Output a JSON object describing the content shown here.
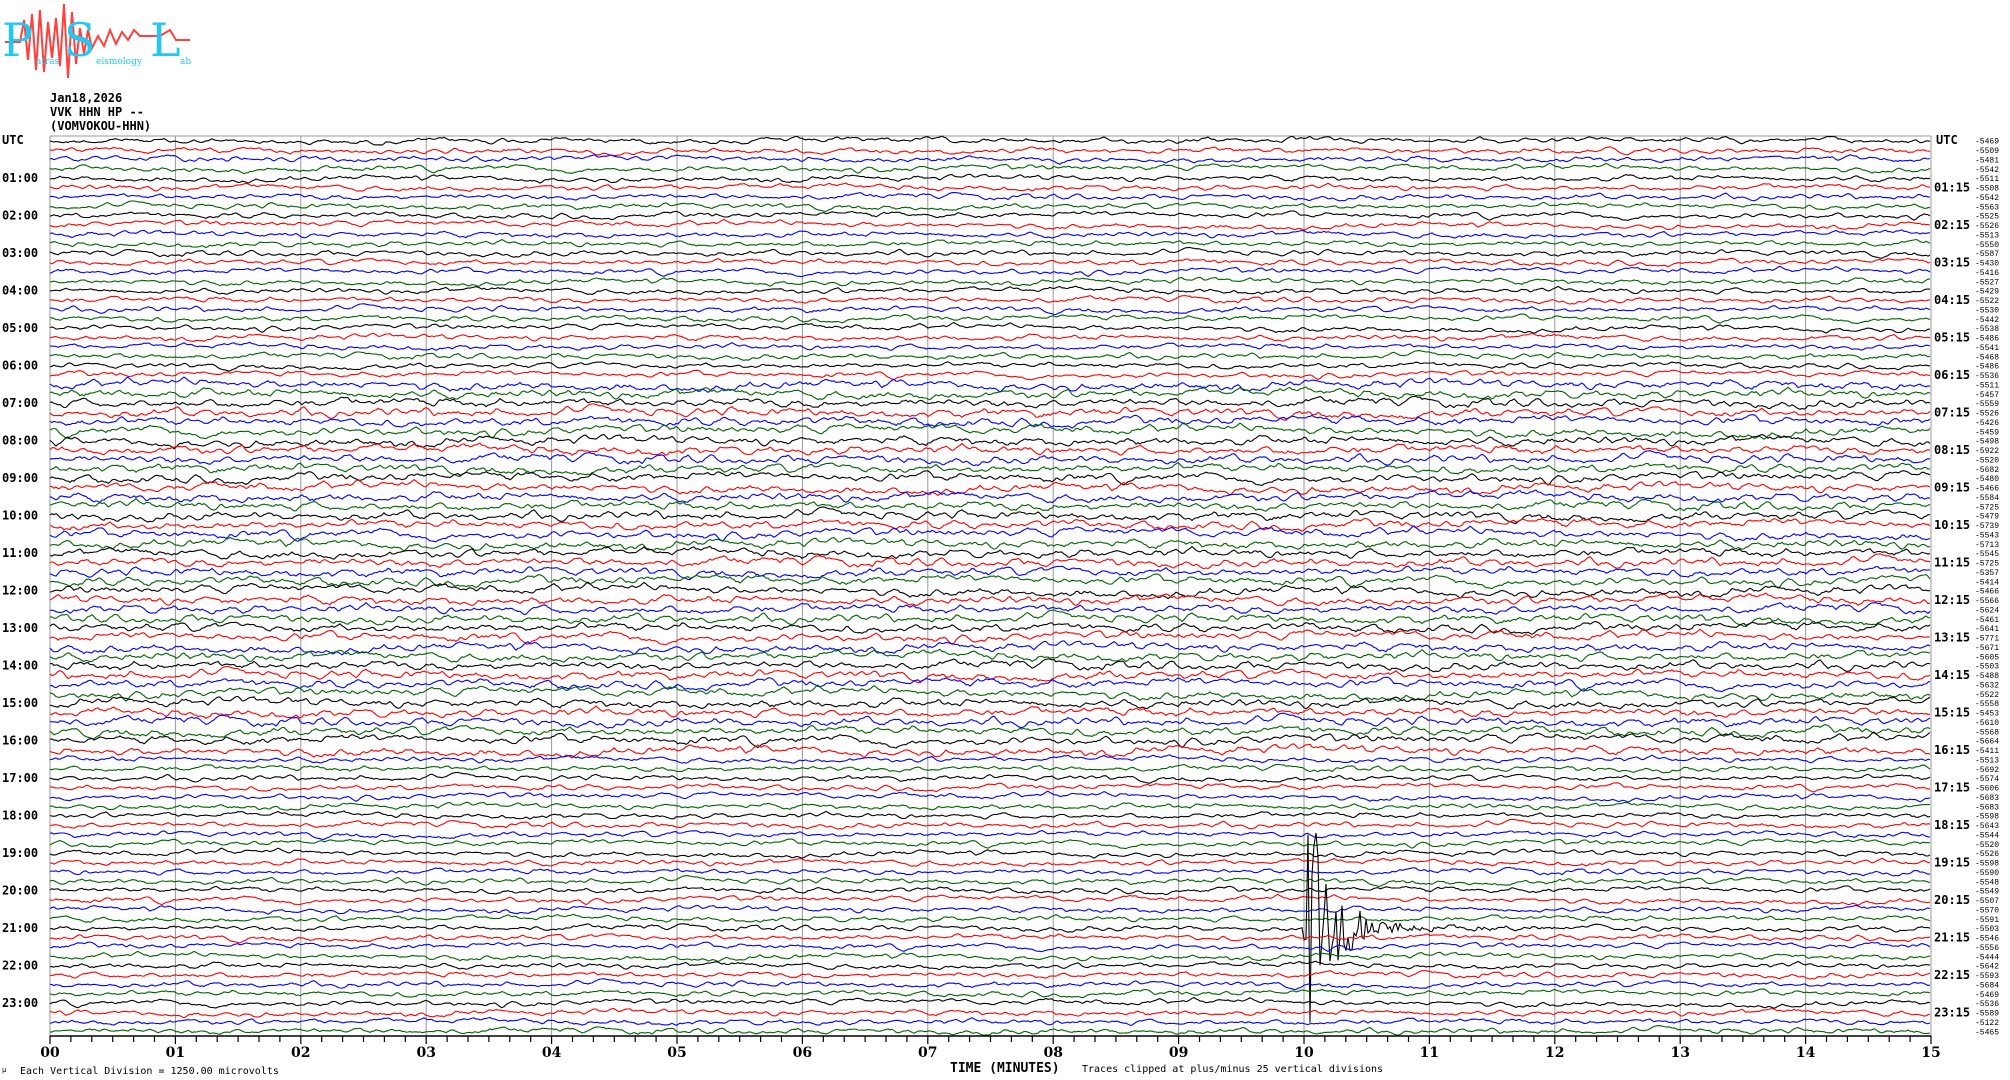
{
  "logo": {
    "text": "PSL",
    "subtitle": "Patras Seismology Lab",
    "colors": {
      "letters": "#22c8ee",
      "wave": "#ff4040"
    }
  },
  "header": {
    "date": "Jan18,2026",
    "station": "VVK HHN HP --",
    "site": "(VOMVOKOU-HHN)"
  },
  "footer": {
    "scale_note": "Each Vertical Division = 1250.00 microvolts",
    "clip_note": "Traces clipped at plus/minus 25 vertical divisions"
  },
  "chart_data": {
    "type": "line",
    "subtype": "helicorder",
    "xlabel": "TIME (MINUTES)",
    "xlim": [
      0,
      15
    ],
    "x_ticks": [
      "00",
      "01",
      "02",
      "03",
      "04",
      "05",
      "06",
      "07",
      "08",
      "09",
      "10",
      "11",
      "12",
      "13",
      "14",
      "15"
    ],
    "minor_ticks_per_minute": 6,
    "grid": "vertical lines each minute",
    "left_axis_title": "UTC",
    "right_axis_title": "UTC",
    "left_labels": [
      "01:00",
      "02:00",
      "03:00",
      "04:00",
      "05:00",
      "06:00",
      "07:00",
      "08:00",
      "09:00",
      "10:00",
      "11:00",
      "12:00",
      "13:00",
      "14:00",
      "15:00",
      "16:00",
      "17:00",
      "18:00",
      "19:00",
      "20:00",
      "21:00",
      "22:00",
      "23:00"
    ],
    "right_labels": [
      "01:15",
      "02:15",
      "03:15",
      "04:15",
      "05:15",
      "06:15",
      "07:15",
      "08:15",
      "09:15",
      "10:15",
      "11:15",
      "12:15",
      "13:15",
      "14:15",
      "15:15",
      "16:15",
      "17:15",
      "18:15",
      "19:15",
      "20:15",
      "21:15",
      "22:15",
      "23:15"
    ],
    "trace_colors": [
      "#000000",
      "#ff0000",
      "#0000ff",
      "#006400"
    ],
    "trace_minutes": 15,
    "trace_count": 96,
    "trace_offsets": [
      "-5469",
      "-5509",
      "-5481",
      "-5542",
      "-5511",
      "-5508",
      "-5542",
      "-5563",
      "-5525",
      "-5526",
      "-5513",
      "-5550",
      "-5587",
      "-5430",
      "-5416",
      "-5527",
      "-5429",
      "-5522",
      "-5530",
      "-5442",
      "-5538",
      "-5486",
      "-5541",
      "-5468",
      "-5486",
      "-5536",
      "-5511",
      "-5457",
      "-5559",
      "-5526",
      "-5426",
      "-5459",
      "-5498",
      "-5922",
      "-5520",
      "-5682",
      "-5480",
      "-5466",
      "-5584",
      "-5725",
      "-5479",
      "-5739",
      "-5543",
      "-5713",
      "-5545",
      "-5725",
      "-5357",
      "-5414",
      "-5466",
      "-5566",
      "-5624",
      "-5461",
      "-5641",
      "-5771",
      "-5671",
      "-5605",
      "-5503",
      "-5488",
      "-5632",
      "-5522",
      "-5558",
      "-5453",
      "-5610",
      "-5568",
      "-5664",
      "-5411",
      "-5513",
      "-5692",
      "-5574",
      "-5606",
      "-5683",
      "-5683",
      "-5598",
      "-5643",
      "-5544",
      "-5520",
      "-5526",
      "-5598",
      "-5590",
      "-5548",
      "-5549",
      "-5507",
      "-5570",
      "-5591",
      "-5503",
      "-5546",
      "-5556",
      "-5444",
      "-5642",
      "-5593",
      "-5684",
      "-5469",
      "-5536",
      "-5589",
      "-5122",
      "-5465"
    ],
    "events": [
      {
        "start": "21:00",
        "minute": 10.0,
        "description": "large clipped earthquake signal"
      }
    ]
  }
}
